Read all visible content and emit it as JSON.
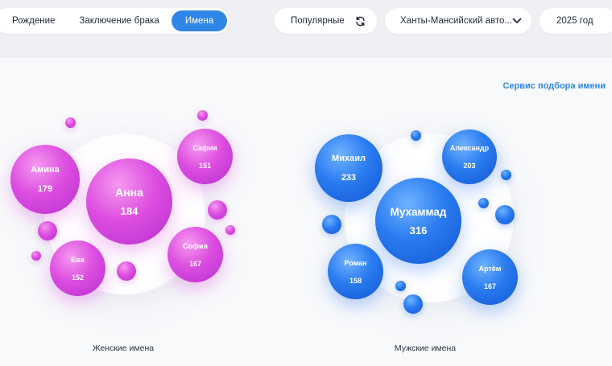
{
  "tabs": [
    {
      "label": "Рождение",
      "active": false
    },
    {
      "label": "Заключение брака",
      "active": false
    },
    {
      "label": "Имена",
      "active": true
    }
  ],
  "filters": {
    "sort_label": "Популярные",
    "sort_icon": "refresh-icon",
    "region_value": "Ханты-Мансийский авто...",
    "region_icon": "chevron-down-icon",
    "year_value": "2025 год"
  },
  "service_link": "Сервис подбора имени",
  "female": {
    "caption": "Женские имена",
    "names": [
      {
        "name": "Амина",
        "count": "179"
      },
      {
        "name": "Анна",
        "count": "184"
      },
      {
        "name": "Сафия",
        "count": "151"
      },
      {
        "name": "София",
        "count": "167"
      },
      {
        "name": "Ева",
        "count": "152"
      }
    ]
  },
  "male": {
    "caption": "Мужские имена",
    "names": [
      {
        "name": "Михаил",
        "count": "233"
      },
      {
        "name": "Александр",
        "count": "203"
      },
      {
        "name": "Мухаммад",
        "count": "316"
      },
      {
        "name": "Роман",
        "count": "158"
      },
      {
        "name": "Артём",
        "count": "167"
      }
    ]
  },
  "colors": {
    "accent": "#2f86e6",
    "female": "#dd4ee0",
    "male": "#2a7bf0"
  }
}
